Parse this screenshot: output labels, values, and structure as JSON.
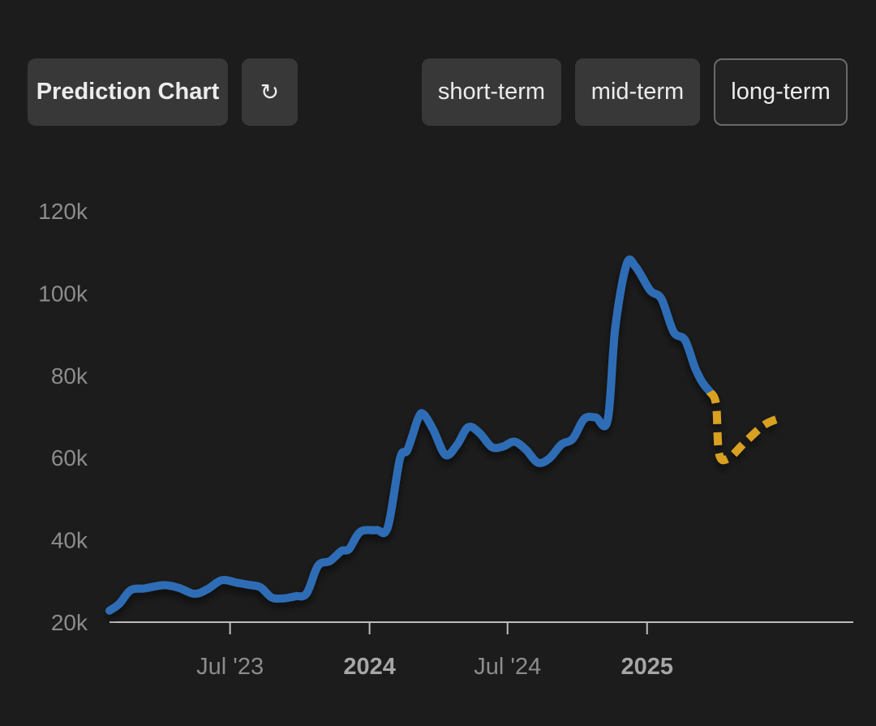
{
  "toolbar": {
    "title_label": "Prediction Chart",
    "refresh_glyph": "↻",
    "refresh_icon": "refresh-icon",
    "ranges": [
      "short-term",
      "mid-term",
      "long-term"
    ],
    "selected_range": "long-term"
  },
  "chart_data": {
    "type": "line",
    "title": "",
    "xlabel": "",
    "ylabel": "",
    "ylim": [
      20000,
      120000
    ],
    "y_ticks": [
      20000,
      40000,
      60000,
      80000,
      100000,
      120000
    ],
    "y_tick_labels": [
      "20k",
      "40k",
      "60k",
      "80k",
      "100k",
      "120k"
    ],
    "x_range": [
      "2023-01-23",
      "2025-09-30"
    ],
    "x_ticks": [
      {
        "date": "2023-07-01",
        "label": "Jul '23",
        "bold": false
      },
      {
        "date": "2024-01-01",
        "label": "2024",
        "bold": true
      },
      {
        "date": "2024-07-01",
        "label": "Jul '24",
        "bold": false
      },
      {
        "date": "2025-01-01",
        "label": "2025",
        "bold": true
      }
    ],
    "grid": false,
    "legend": "none",
    "series": [
      {
        "style": "solid",
        "color": "#2f6db5",
        "points": [
          [
            "2023-01-23",
            22800
          ],
          [
            "2023-02-05",
            24500
          ],
          [
            "2023-02-20",
            27800
          ],
          [
            "2023-03-10",
            28200
          ],
          [
            "2023-04-05",
            29000
          ],
          [
            "2023-04-25",
            28300
          ],
          [
            "2023-05-15",
            26900
          ],
          [
            "2023-06-01",
            28000
          ],
          [
            "2023-06-20",
            30200
          ],
          [
            "2023-07-10",
            29600
          ],
          [
            "2023-07-25",
            29100
          ],
          [
            "2023-08-10",
            28500
          ],
          [
            "2023-08-25",
            26000
          ],
          [
            "2023-09-10",
            25800
          ],
          [
            "2023-09-25",
            26300
          ],
          [
            "2023-10-10",
            27000
          ],
          [
            "2023-10-25",
            33700
          ],
          [
            "2023-11-10",
            34900
          ],
          [
            "2023-11-25",
            37300
          ],
          [
            "2023-12-05",
            37800
          ],
          [
            "2023-12-20",
            42000
          ],
          [
            "2024-01-10",
            42400
          ],
          [
            "2024-01-25",
            43100
          ],
          [
            "2024-02-10",
            59700
          ],
          [
            "2024-02-20",
            61900
          ],
          [
            "2024-03-05",
            69500
          ],
          [
            "2024-03-12",
            70600
          ],
          [
            "2024-03-25",
            66800
          ],
          [
            "2024-04-10",
            60700
          ],
          [
            "2024-04-25",
            63000
          ],
          [
            "2024-05-10",
            67400
          ],
          [
            "2024-05-25",
            66000
          ],
          [
            "2024-06-10",
            62600
          ],
          [
            "2024-06-25",
            62700
          ],
          [
            "2024-07-10",
            63900
          ],
          [
            "2024-07-25",
            62000
          ],
          [
            "2024-08-10",
            58800
          ],
          [
            "2024-08-25",
            59800
          ],
          [
            "2024-09-10",
            63200
          ],
          [
            "2024-09-25",
            64600
          ],
          [
            "2024-10-10",
            69400
          ],
          [
            "2024-10-25",
            69800
          ],
          [
            "2024-11-10",
            69100
          ],
          [
            "2024-11-20",
            91500
          ],
          [
            "2024-12-05",
            107000
          ],
          [
            "2024-12-17",
            106400
          ],
          [
            "2025-01-05",
            100700
          ],
          [
            "2025-01-20",
            98600
          ],
          [
            "2025-02-05",
            90600
          ],
          [
            "2025-02-20",
            88600
          ],
          [
            "2025-03-05",
            82000
          ],
          [
            "2025-03-15",
            78300
          ],
          [
            "2025-03-25",
            76000
          ]
        ]
      },
      {
        "style": "dashed",
        "color": "#d9a123",
        "points": [
          [
            "2025-03-25",
            76000
          ],
          [
            "2025-04-02",
            73000
          ],
          [
            "2025-04-06",
            61000
          ],
          [
            "2025-04-18",
            59800
          ],
          [
            "2025-05-10",
            63700
          ],
          [
            "2025-06-05",
            68000
          ],
          [
            "2025-06-30",
            69900
          ]
        ]
      }
    ]
  }
}
